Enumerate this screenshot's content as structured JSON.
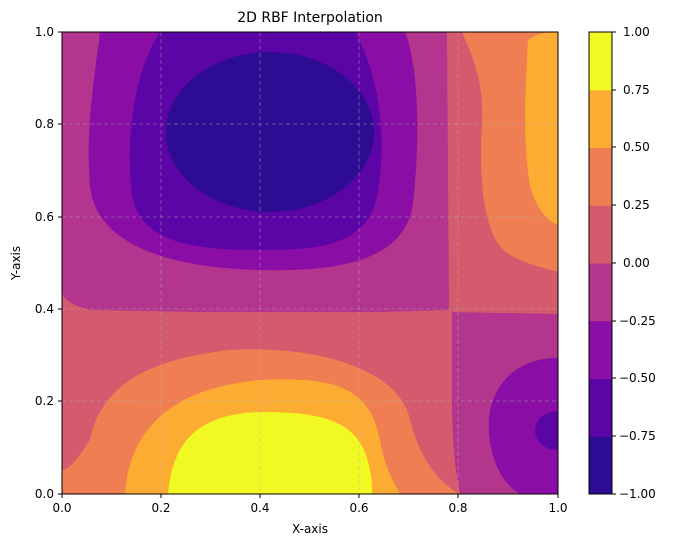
{
  "chart_data": {
    "type": "heatmap",
    "subtype": "filled-contour",
    "title": "2D RBF Interpolation",
    "xlabel": "X-axis",
    "ylabel": "Y-axis",
    "xlim": [
      0,
      1
    ],
    "ylim": [
      0,
      1
    ],
    "xticks": [
      "0.0",
      "0.2",
      "0.4",
      "0.6",
      "0.8",
      "1.0"
    ],
    "yticks": [
      "0.0",
      "0.2",
      "0.4",
      "0.6",
      "0.8",
      "1.0"
    ],
    "grid": true,
    "grid_style": "dashed",
    "colormap": "plasma",
    "colorbar": {
      "ticks": [
        "−1.00",
        "−0.75",
        "−0.50",
        "−0.25",
        "0.00",
        "0.25",
        "0.50",
        "0.75",
        "1.00"
      ],
      "levels": [
        -1.0,
        -0.75,
        -0.5,
        -0.25,
        0.0,
        0.25,
        0.5,
        0.75,
        1.0
      ],
      "colors": [
        "#2d0c93",
        "#5b05a6",
        "#8a0da5",
        "#b3358d",
        "#d45a6e",
        "#ef7f52",
        "#fdac33",
        "#f0f921"
      ]
    },
    "features": [
      {
        "name": "minimum",
        "x": 0.38,
        "y": 0.79,
        "value_range": [
          -1.0,
          -0.75
        ]
      },
      {
        "name": "maximum",
        "x": 0.39,
        "y": 0.04,
        "value_range": [
          0.75,
          1.0
        ]
      },
      {
        "name": "local-high",
        "x": 1.0,
        "y": 0.8,
        "value_range": [
          0.5,
          0.75
        ]
      },
      {
        "name": "local-low",
        "x": 1.0,
        "y": 0.14,
        "value_range": [
          -0.75,
          -0.5
        ]
      }
    ]
  }
}
